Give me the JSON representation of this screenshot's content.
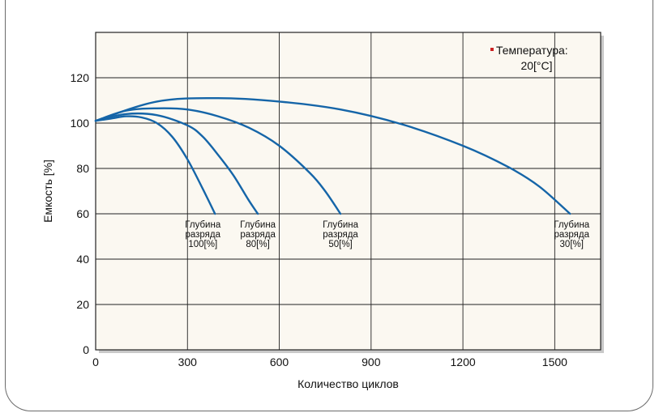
{
  "chart_data": {
    "type": "line",
    "xlabel": "Количество циклов",
    "ylabel": "Емкость [%]",
    "xlim": [
      0,
      1650
    ],
    "ylim": [
      0,
      140
    ],
    "xticks": [
      0,
      300,
      600,
      900,
      1200,
      1500
    ],
    "yticks": [
      0,
      20,
      40,
      60,
      80,
      100,
      120
    ],
    "grid": true,
    "legend": {
      "position": "top-right",
      "text_line1": "Температура:",
      "text_line2": "20[°C]",
      "marker_color": "#cc2222"
    },
    "series": [
      {
        "label_lines": [
          "Глубина",
          "разряда",
          "100[%]"
        ],
        "x": [
          0,
          50,
          100,
          150,
          200,
          250,
          300,
          350,
          390
        ],
        "y": [
          101,
          102,
          103,
          102.5,
          100,
          94,
          84,
          71,
          60
        ]
      },
      {
        "label_lines": [
          "Глубина",
          "разряда",
          "80[%]"
        ],
        "x": [
          0,
          100,
          200,
          300,
          350,
          400,
          450,
          500,
          530
        ],
        "y": [
          101,
          104,
          103.5,
          99,
          94,
          86,
          77,
          66,
          60
        ]
      },
      {
        "label_lines": [
          "Глубина",
          "разряда",
          "50[%]"
        ],
        "x": [
          0,
          100,
          200,
          300,
          400,
          500,
          600,
          700,
          750,
          800
        ],
        "y": [
          101,
          105.5,
          106.5,
          106,
          103,
          98,
          90,
          78,
          70,
          60
        ]
      },
      {
        "label_lines": [
          "Глубина",
          "разряда",
          "30[%]"
        ],
        "x": [
          0,
          200,
          400,
          600,
          800,
          1000,
          1200,
          1350,
          1450,
          1550
        ],
        "y": [
          101,
          109.5,
          111,
          109.5,
          106,
          99.5,
          90,
          80.5,
          72,
          60
        ]
      }
    ]
  },
  "colors": {
    "plot_background": "#fbf8f1",
    "line": "#1565a8",
    "grid": "#222222",
    "border": "#222222"
  }
}
